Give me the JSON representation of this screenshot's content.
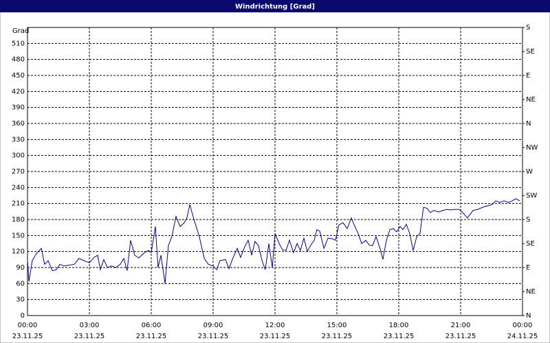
{
  "chart_data": {
    "type": "line",
    "title": "Windrichtung [Grad]",
    "y_label": "Grad",
    "x": [
      0,
      0.07,
      0.23,
      0.43,
      0.67,
      0.83,
      1,
      1.2,
      1.4,
      1.57,
      1.77,
      1.93,
      2.27,
      2.5,
      2.73,
      3,
      3.23,
      3.4,
      3.53,
      3.7,
      3.87,
      4.07,
      4.27,
      4.5,
      4.67,
      4.83,
      5,
      5.2,
      5.4,
      5.67,
      5.87,
      6,
      6.2,
      6.33,
      6.47,
      6.67,
      6.83,
      7,
      7.2,
      7.4,
      7.6,
      7.73,
      7.87,
      8.07,
      8.33,
      8.57,
      8.77,
      9,
      9.17,
      9.33,
      9.6,
      9.77,
      9.93,
      10.17,
      10.33,
      10.53,
      10.7,
      10.87,
      11.03,
      11.2,
      11.37,
      11.53,
      11.7,
      11.87,
      12,
      12.2,
      12.37,
      12.53,
      12.7,
      12.9,
      13.07,
      13.23,
      13.4,
      13.57,
      13.73,
      13.9,
      14.03,
      14.17,
      14.37,
      14.57,
      14.77,
      14.93,
      15.1,
      15.3,
      15.5,
      15.7,
      15.87,
      16.03,
      16.2,
      16.4,
      16.57,
      16.73,
      16.9,
      17.1,
      17.23,
      17.4,
      17.57,
      17.73,
      17.9,
      18.07,
      18.2,
      18.37,
      18.53,
      18.7,
      18.87,
      19.03,
      19.2,
      19.37,
      19.53,
      19.7,
      19.93,
      20.13,
      20.33,
      20.53,
      20.73,
      20.93,
      21.1,
      21.33,
      21.6,
      21.83,
      22.07,
      22.33,
      22.53,
      22.7,
      22.9,
      23.1,
      23.33,
      23.5,
      23.67,
      23.87
    ],
    "values": [
      103,
      64,
      103,
      116,
      126,
      96,
      103,
      84,
      86,
      96,
      93,
      94,
      96,
      107,
      103,
      99,
      109,
      113,
      86,
      105,
      90,
      93,
      90,
      96,
      107,
      84,
      141,
      113,
      108,
      118,
      122,
      118,
      167,
      90,
      113,
      60,
      131,
      148,
      186,
      167,
      174,
      183,
      208,
      180,
      148,
      107,
      96,
      93,
      86,
      103,
      105,
      88,
      105,
      126,
      109,
      129,
      141,
      113,
      139,
      131,
      103,
      86,
      135,
      90,
      154,
      135,
      123,
      122,
      141,
      118,
      135,
      122,
      145,
      120,
      132,
      141,
      161,
      158,
      126,
      145,
      144,
      141,
      170,
      174,
      163,
      183,
      167,
      154,
      135,
      141,
      132,
      131,
      148,
      125,
      105,
      141,
      161,
      163,
      157,
      167,
      161,
      171,
      154,
      122,
      148,
      154,
      203,
      201,
      193,
      197,
      194,
      197,
      199,
      198,
      199,
      199,
      193,
      183,
      197,
      199,
      203,
      206,
      208,
      215,
      212,
      215,
      212,
      215,
      219,
      215
    ],
    "color": "#00008b",
    "xlim": [
      0,
      24
    ],
    "xticks": [
      {
        "value": 0,
        "label": "00:00"
      },
      {
        "value": 3,
        "label": "03:00"
      },
      {
        "value": 6,
        "label": "06:00"
      },
      {
        "value": 9,
        "label": "09:00"
      },
      {
        "value": 12,
        "label": "12:00"
      },
      {
        "value": 15,
        "label": "15:00"
      },
      {
        "value": 18,
        "label": "18:00"
      },
      {
        "value": 21,
        "label": "21:00"
      },
      {
        "value": 24,
        "label": "00:00"
      }
    ],
    "xtick_dates": [
      "23.11.25",
      "23.11.25",
      "23.11.25",
      "23.11.25",
      "23.11.25",
      "23.11.25",
      "23.11.25",
      "23.11.25",
      "24.11.25"
    ],
    "ylim": [
      0,
      540
    ],
    "yticks": [
      0,
      30,
      60,
      90,
      120,
      150,
      180,
      210,
      240,
      270,
      300,
      330,
      360,
      390,
      420,
      450,
      480,
      510
    ],
    "y2lim": [
      0,
      540
    ],
    "y2ticks": [
      {
        "value": 0,
        "label": "N"
      },
      {
        "value": 45,
        "label": "NE"
      },
      {
        "value": 90,
        "label": "E"
      },
      {
        "value": 135,
        "label": "SE"
      },
      {
        "value": 180,
        "label": "S"
      },
      {
        "value": 225,
        "label": "SW"
      },
      {
        "value": 270,
        "label": "W"
      },
      {
        "value": 315,
        "label": "NW"
      },
      {
        "value": 360,
        "label": "N"
      },
      {
        "value": 405,
        "label": "NE"
      },
      {
        "value": 450,
        "label": "E"
      },
      {
        "value": 495,
        "label": "SE"
      },
      {
        "value": 540,
        "label": "S"
      }
    ],
    "grid": true
  }
}
